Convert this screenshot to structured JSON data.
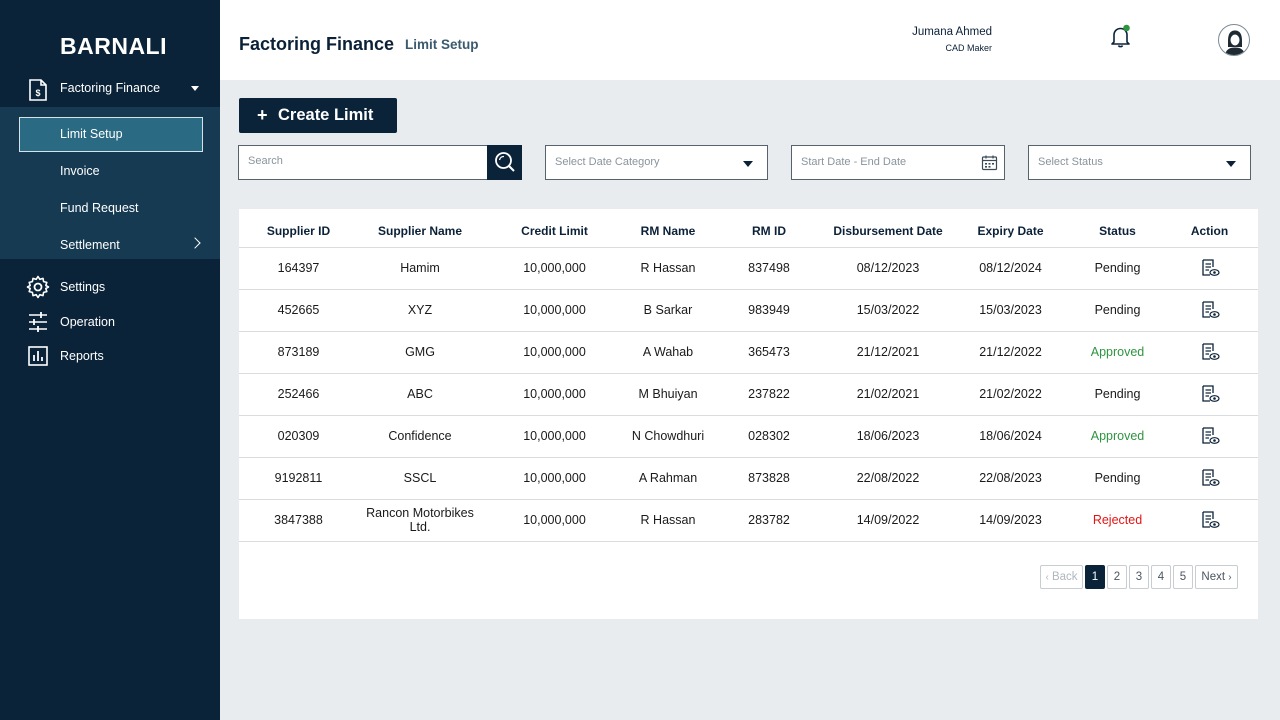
{
  "app": {
    "brand": "BARNALI"
  },
  "sidebar": {
    "main": {
      "label": "Factoring Finance",
      "icon": "document-dollar-icon"
    },
    "submenu": [
      {
        "label": "Limit Setup",
        "active": true
      },
      {
        "label": "Invoice"
      },
      {
        "label": "Fund Request"
      },
      {
        "label": "Settlement"
      }
    ],
    "items": [
      {
        "label": "Settings",
        "icon": "gear-icon"
      },
      {
        "label": "Operation",
        "icon": "sliders-icon"
      },
      {
        "label": "Reports",
        "icon": "bar-chart-icon"
      }
    ]
  },
  "header": {
    "title": "Factoring Finance",
    "subtitle": "Limit Setup",
    "user_name": "Jumana Ahmed",
    "user_role": "CAD Maker",
    "notification_dot_color": "#2e9440"
  },
  "toolbar": {
    "create_plus": "+",
    "create_label": "Create Limit",
    "search_placeholder": "Search",
    "date_category_placeholder": "Select Date Category",
    "date_range_placeholder": "Start Date - End Date",
    "status_placeholder": "Select Status"
  },
  "table": {
    "headers": [
      "Supplier ID",
      "Supplier Name",
      "Credit Limit",
      "RM Name",
      "RM ID",
      "Disbursement Date",
      "Expiry Date",
      "Status",
      "Action"
    ],
    "rows": [
      {
        "supplier_id": "164397",
        "supplier_name": "Hamim",
        "credit_limit": "10,000,000",
        "rm_name": "R Hassan",
        "rm_id": "837498",
        "disbursement_date": "08/12/2023",
        "expiry_date": "08/12/2024",
        "status": "Pending"
      },
      {
        "supplier_id": "452665",
        "supplier_name": "XYZ",
        "credit_limit": "10,000,000",
        "rm_name": "B Sarkar",
        "rm_id": "983949",
        "disbursement_date": "15/03/2022",
        "expiry_date": "15/03/2023",
        "status": "Pending"
      },
      {
        "supplier_id": "873189",
        "supplier_name": "GMG",
        "credit_limit": "10,000,000",
        "rm_name": "A Wahab",
        "rm_id": "365473",
        "disbursement_date": "21/12/2021",
        "expiry_date": "21/12/2022",
        "status": "Approved"
      },
      {
        "supplier_id": "252466",
        "supplier_name": "ABC",
        "credit_limit": "10,000,000",
        "rm_name": "M Bhuiyan",
        "rm_id": "237822",
        "disbursement_date": "21/02/2021",
        "expiry_date": "21/02/2022",
        "status": "Pending"
      },
      {
        "supplier_id": "020309",
        "supplier_name": "Confidence",
        "credit_limit": "10,000,000",
        "rm_name": "N Chowdhuri",
        "rm_id": "028302",
        "disbursement_date": "18/06/2023",
        "expiry_date": "18/06/2024",
        "status": "Approved"
      },
      {
        "supplier_id": "9192811",
        "supplier_name": "SSCL",
        "credit_limit": "10,000,000",
        "rm_name": "A Rahman",
        "rm_id": "873828",
        "disbursement_date": "22/08/2022",
        "expiry_date": "22/08/2023",
        "status": "Pending"
      },
      {
        "supplier_id": "3847388",
        "supplier_name": "Rancon Motorbikes Ltd.",
        "credit_limit": "10,000,000",
        "rm_name": "R Hassan",
        "rm_id": "283782",
        "disbursement_date": "14/09/2022",
        "expiry_date": "14/09/2023",
        "status": "Rejected"
      }
    ],
    "action_icon": "view-document-icon"
  },
  "pagination": {
    "back_label": "Back",
    "next_label": "Next",
    "pages": [
      "1",
      "2",
      "3",
      "4",
      "5"
    ],
    "current": "1"
  },
  "colors": {
    "sidebar_bg": "#0b2338",
    "submenu_bg": "#163a52",
    "active_item_bg": "#2a6a82",
    "approved": "#2e9440",
    "rejected": "#e31414"
  }
}
